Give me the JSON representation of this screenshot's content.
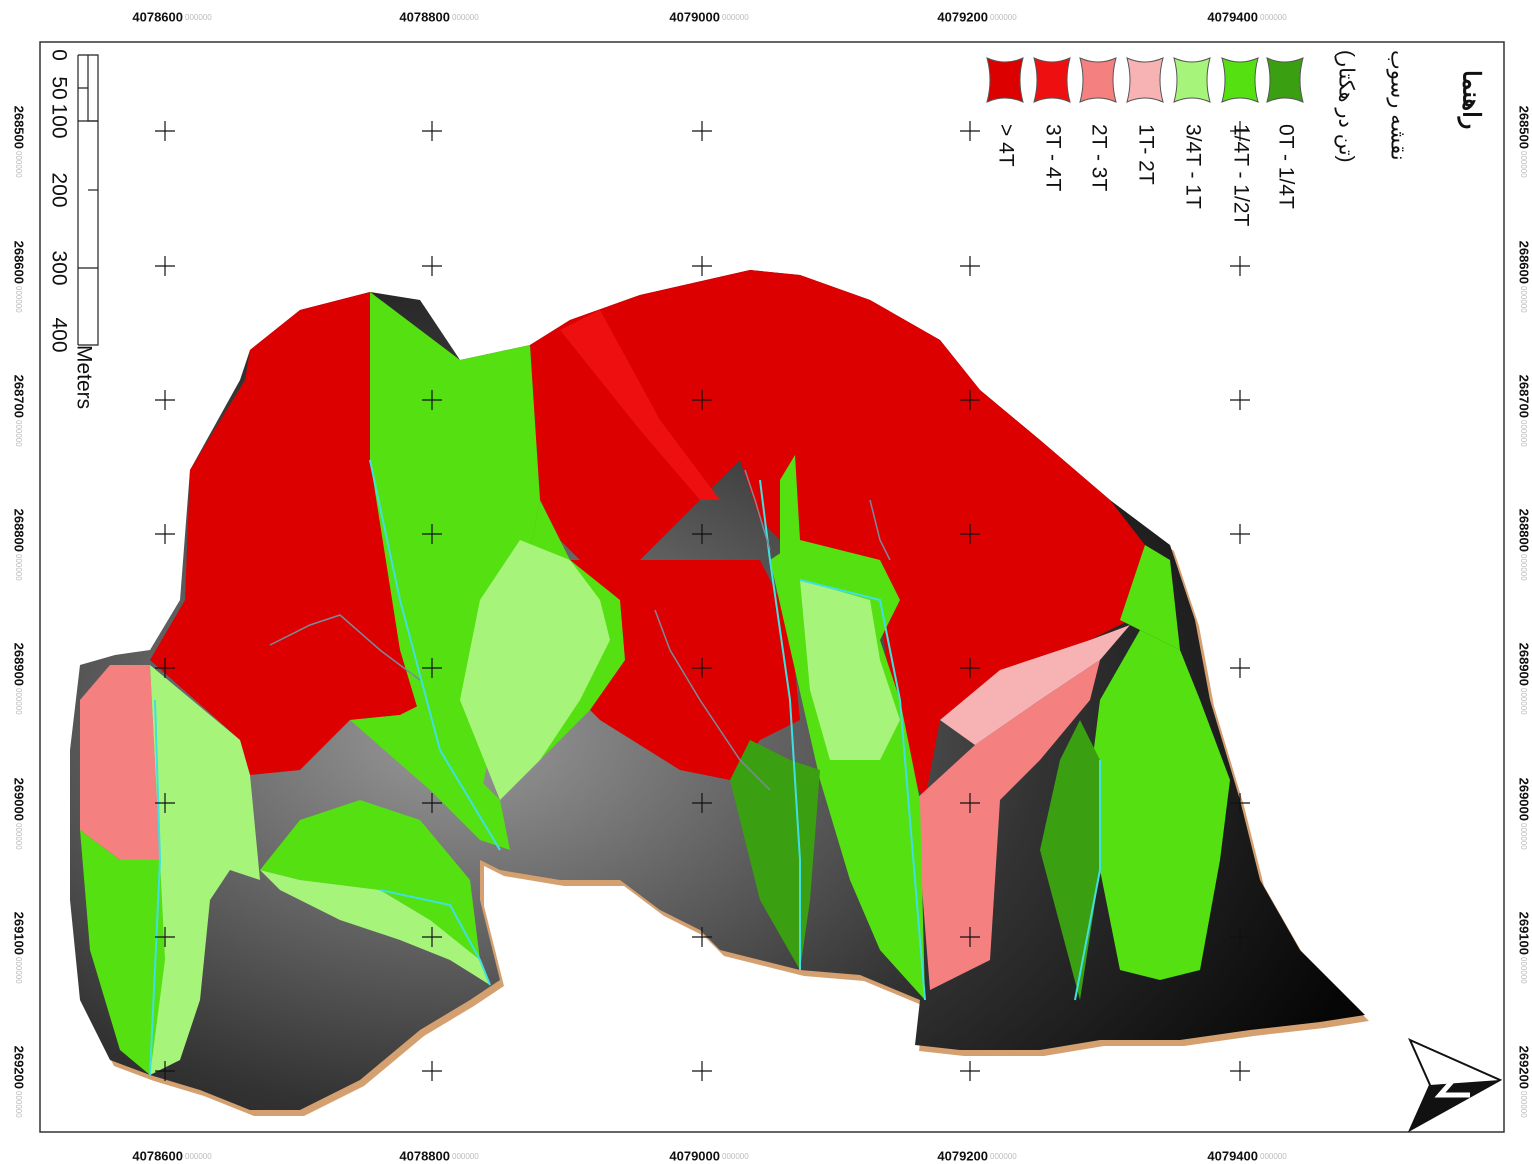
{
  "map": {
    "x_labels": [
      "4078600",
      "4078800",
      "4079000",
      "4079200",
      "4079400"
    ],
    "y_labels": [
      "268500",
      "268600",
      "268700",
      "268800",
      "268900",
      "269000",
      "269100",
      "269200"
    ],
    "label_suffix": "000000",
    "legend": {
      "title": "راهنما",
      "subtitle": "نقشه رسوب",
      "unit": "(تن در هکتار)",
      "items": [
        {
          "label": "0T - 1/4T",
          "color": "#3aa012"
        },
        {
          "label": "1/4T - 1/2T",
          "color": "#55e012"
        },
        {
          "label": "3/4T - 1T",
          "color": "#a6f57a"
        },
        {
          "label": "1T- 2T",
          "color": "#f7b3b3"
        },
        {
          "label": "2T - 3T",
          "color": "#f58080"
        },
        {
          "label": "3T - 4T",
          "color": "#ee1010"
        },
        {
          "label": "> 4T",
          "color": "#dd0000"
        }
      ]
    },
    "scale_bar": {
      "labels": [
        "0",
        "50",
        "100",
        "200",
        "300",
        "400"
      ],
      "unit": "Meters"
    }
  }
}
